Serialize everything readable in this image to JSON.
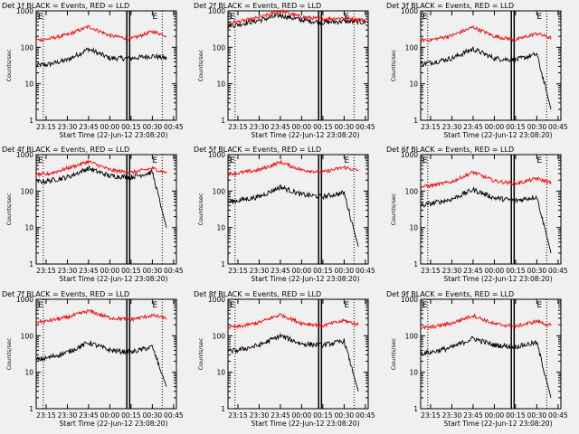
{
  "figure": {
    "xtick_labels": [
      "23:15",
      "23:30",
      "23:45",
      "00:00",
      "00:15",
      "00:30",
      "00:45"
    ],
    "xlabel": "Start Time (22-Jun-12 23:08:20)",
    "ylabel": "Counts/sec",
    "ytick_labels": [
      "1",
      "10",
      "100",
      "1000"
    ],
    "marker_left": "E",
    "marker_right": "E"
  },
  "colors": {
    "events": "#000000",
    "lld": "#ff0000",
    "background": "#f0f0f0"
  },
  "chart_data": [
    {
      "type": "line",
      "title": "Det 1f BLACK = Events, RED = LLD",
      "ylim": [
        1,
        1000
      ],
      "yscale": "log",
      "x": [
        "23:08",
        "23:15",
        "23:30",
        "23:45",
        "00:00",
        "00:15",
        "00:30",
        "00:40"
      ],
      "series": [
        {
          "name": "BLACK = Events",
          "values": [
            32,
            33,
            45,
            90,
            50,
            50,
            58,
            50
          ]
        },
        {
          "name": "RED = LLD",
          "values": [
            160,
            165,
            220,
            370,
            210,
            170,
            270,
            210
          ]
        }
      ]
    },
    {
      "type": "line",
      "title": "Det 2f BLACK = Events, RED = LLD",
      "ylim": [
        1,
        1000
      ],
      "yscale": "log",
      "x": [
        "23:08",
        "23:15",
        "23:30",
        "23:45",
        "00:00",
        "00:15",
        "00:30",
        "00:45"
      ],
      "series": [
        {
          "name": "BLACK = Events",
          "values": [
            400,
            420,
            550,
            750,
            560,
            480,
            520,
            480
          ]
        },
        {
          "name": "RED = LLD",
          "values": [
            480,
            500,
            650,
            1000,
            680,
            600,
            640,
            560
          ]
        }
      ]
    },
    {
      "type": "line",
      "title": "Det 3f BLACK = Events, RED = LLD",
      "ylim": [
        1,
        1000
      ],
      "yscale": "log",
      "x": [
        "23:08",
        "23:15",
        "23:30",
        "23:45",
        "00:00",
        "00:15",
        "00:30",
        "00:40"
      ],
      "series": [
        {
          "name": "BLACK = Events",
          "values": [
            35,
            38,
            50,
            90,
            50,
            45,
            65,
            2
          ]
        },
        {
          "name": "RED = LLD",
          "values": [
            160,
            160,
            210,
            360,
            200,
            160,
            240,
            180
          ]
        }
      ]
    },
    {
      "type": "line",
      "title": "Det 4f BLACK = Events, RED = LLD",
      "ylim": [
        1,
        1000
      ],
      "yscale": "log",
      "x": [
        "23:08",
        "23:15",
        "23:30",
        "23:45",
        "00:00",
        "00:15",
        "00:30",
        "00:40"
      ],
      "series": [
        {
          "name": "BLACK = Events",
          "values": [
            180,
            185,
            240,
            420,
            260,
            240,
            330,
            10
          ]
        },
        {
          "name": "RED = LLD",
          "values": [
            280,
            285,
            420,
            650,
            380,
            320,
            420,
            320
          ]
        }
      ]
    },
    {
      "type": "line",
      "title": "Det 5f BLACK = Events, RED = LLD",
      "ylim": [
        1,
        1000
      ],
      "yscale": "log",
      "x": [
        "23:08",
        "23:15",
        "23:30",
        "23:45",
        "00:00",
        "00:15",
        "00:30",
        "00:40"
      ],
      "series": [
        {
          "name": "BLACK = Events",
          "values": [
            50,
            55,
            70,
            130,
            80,
            70,
            90,
            3
          ]
        },
        {
          "name": "RED = LLD",
          "values": [
            300,
            310,
            380,
            620,
            380,
            330,
            450,
            360
          ]
        }
      ]
    },
    {
      "type": "line",
      "title": "Det 6f BLACK = Events, RED = LLD",
      "ylim": [
        1,
        1000
      ],
      "yscale": "log",
      "x": [
        "23:08",
        "23:15",
        "23:30",
        "23:45",
        "00:00",
        "00:15",
        "00:30",
        "00:40"
      ],
      "series": [
        {
          "name": "BLACK = Events",
          "values": [
            40,
            45,
            60,
            110,
            65,
            55,
            70,
            2
          ]
        },
        {
          "name": "RED = LLD",
          "values": [
            130,
            140,
            180,
            330,
            190,
            160,
            220,
            170
          ]
        }
      ]
    },
    {
      "type": "line",
      "title": "Det 7f BLACK = Events, RED = LLD",
      "ylim": [
        1,
        1000
      ],
      "yscale": "log",
      "x": [
        "23:08",
        "23:15",
        "23:30",
        "23:45",
        "00:00",
        "00:15",
        "00:30",
        "00:40"
      ],
      "series": [
        {
          "name": "BLACK = Events",
          "values": [
            22,
            24,
            35,
            65,
            40,
            35,
            50,
            4
          ]
        },
        {
          "name": "RED = LLD",
          "values": [
            240,
            250,
            320,
            480,
            310,
            280,
            360,
            300
          ]
        }
      ]
    },
    {
      "type": "line",
      "title": "Det 8f BLACK = Events, RED = LLD",
      "ylim": [
        1,
        1000
      ],
      "yscale": "log",
      "x": [
        "23:08",
        "23:15",
        "23:30",
        "23:45",
        "00:00",
        "00:15",
        "00:30",
        "00:40"
      ],
      "series": [
        {
          "name": "BLACK = Events",
          "values": [
            38,
            40,
            55,
            100,
            60,
            55,
            72,
            3
          ]
        },
        {
          "name": "RED = LLD",
          "values": [
            170,
            175,
            230,
            380,
            220,
            190,
            260,
            200
          ]
        }
      ]
    },
    {
      "type": "line",
      "title": "Det 9f BLACK = Events, RED = LLD",
      "ylim": [
        1,
        1000
      ],
      "yscale": "log",
      "x": [
        "23:08",
        "23:15",
        "23:30",
        "23:45",
        "00:00",
        "00:15",
        "00:30",
        "00:40"
      ],
      "series": [
        {
          "name": "BLACK = Events",
          "values": [
            33,
            35,
            48,
            85,
            55,
            50,
            65,
            2
          ]
        },
        {
          "name": "RED = LLD",
          "values": [
            165,
            170,
            220,
            360,
            210,
            180,
            250,
            190
          ]
        }
      ]
    }
  ]
}
